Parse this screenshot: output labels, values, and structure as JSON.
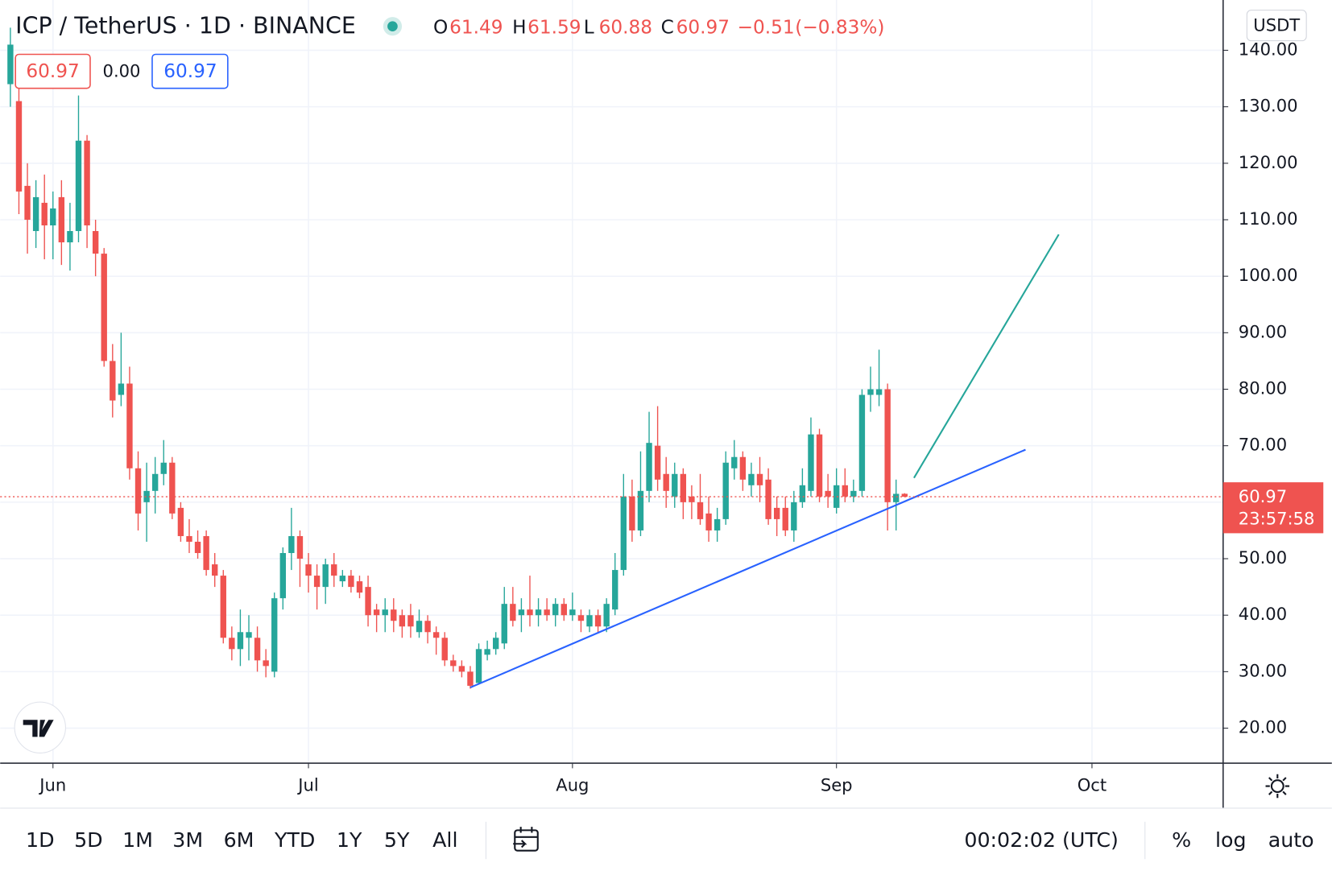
{
  "chart_data": {
    "type": "candlestick",
    "title": "ICP / TetherUS · 1D · BINANCE",
    "header_letters": [
      "O",
      "H",
      "L",
      "C"
    ],
    "change": {
      "value": -0.51,
      "label": "−0.51"
    },
    "change_pct": {
      "value": -0.83,
      "label": "(−0.83%)"
    },
    "legend_values": [
      60.97,
      {
        "value": 0,
        "label": "0.00"
      },
      60.97
    ],
    "currency": "USDT",
    "countdown": "23:57:58",
    "up_color": "#26a69a",
    "down_color": "#ef5350",
    "grid": true,
    "ohlc": [
      [
        134,
        144,
        130,
        141
      ],
      [
        131,
        135,
        111,
        115
      ],
      [
        116,
        120,
        104,
        110
      ],
      [
        108,
        117,
        105,
        114
      ],
      [
        113,
        118,
        103,
        109
      ],
      [
        109,
        115,
        103,
        112
      ],
      [
        114,
        117,
        102,
        106
      ],
      [
        106,
        113,
        101,
        108
      ],
      [
        108,
        132,
        106,
        124
      ],
      [
        124,
        125,
        105,
        109
      ],
      [
        108,
        110,
        100,
        104
      ],
      [
        104,
        105,
        84,
        85
      ],
      [
        85,
        88,
        75,
        78
      ],
      [
        79,
        90,
        77,
        81
      ],
      [
        81,
        84,
        64,
        66
      ],
      [
        66,
        69,
        55,
        58
      ],
      [
        60,
        67,
        53,
        62
      ],
      [
        62,
        68,
        58,
        65
      ],
      [
        65,
        71,
        63,
        67
      ],
      [
        67,
        68,
        57,
        58
      ],
      [
        59,
        60,
        53,
        54
      ],
      [
        54,
        57,
        51,
        53
      ],
      [
        53,
        55,
        50,
        51
      ],
      [
        54,
        55,
        47,
        48
      ],
      [
        49,
        51,
        45,
        47
      ],
      [
        47,
        48,
        35,
        36
      ],
      [
        36,
        38,
        32,
        34
      ],
      [
        34,
        41,
        31,
        37
      ],
      [
        36,
        40,
        32,
        37
      ],
      [
        36,
        38,
        30,
        32
      ],
      [
        32,
        34,
        29,
        31
      ],
      [
        30,
        44,
        29,
        43
      ],
      [
        43,
        52,
        41,
        51
      ],
      [
        51,
        59,
        48,
        54
      ],
      [
        54,
        55,
        45,
        50
      ],
      [
        49,
        51,
        44,
        47
      ],
      [
        47,
        49,
        41,
        45
      ],
      [
        45,
        50,
        42,
        49
      ],
      [
        49,
        51,
        45,
        47
      ],
      [
        46,
        48,
        45,
        47
      ],
      [
        47,
        48,
        44,
        45
      ],
      [
        46,
        47,
        43,
        44
      ],
      [
        45,
        47,
        38,
        40
      ],
      [
        41,
        42,
        37,
        40
      ],
      [
        40,
        43,
        37,
        41
      ],
      [
        41,
        43,
        37,
        39
      ],
      [
        40,
        41,
        36,
        38
      ],
      [
        40,
        42,
        36,
        38
      ],
      [
        37,
        41,
        36,
        39
      ],
      [
        39,
        40,
        35,
        37
      ],
      [
        37,
        38,
        33,
        36
      ],
      [
        36,
        37,
        31,
        32
      ],
      [
        32,
        33,
        30,
        31
      ],
      [
        31,
        32,
        29,
        30
      ],
      [
        30,
        31,
        27,
        27.5
      ],
      [
        28,
        35,
        28,
        34
      ],
      [
        33,
        35.5,
        32,
        34
      ],
      [
        34,
        37,
        33,
        36
      ],
      [
        35,
        45,
        34,
        42
      ],
      [
        42,
        45,
        38,
        39
      ],
      [
        40,
        43,
        37,
        41
      ],
      [
        41,
        47,
        38,
        40
      ],
      [
        40,
        43,
        38,
        41
      ],
      [
        41,
        43,
        39,
        40
      ],
      [
        40,
        43,
        38,
        42
      ],
      [
        42,
        43,
        39,
        40
      ],
      [
        40,
        44,
        39,
        41
      ],
      [
        40,
        41,
        37,
        39
      ],
      [
        38,
        41,
        37,
        40
      ],
      [
        40,
        41,
        37,
        38
      ],
      [
        38,
        43,
        37,
        42
      ],
      [
        41,
        51,
        40,
        48
      ],
      [
        48,
        65,
        47,
        61
      ],
      [
        61,
        64,
        53,
        55
      ],
      [
        55,
        69,
        54,
        62
      ],
      [
        62,
        76,
        60,
        70.5
      ],
      [
        70,
        77,
        62,
        64
      ],
      [
        65,
        68,
        59,
        62
      ],
      [
        61,
        67,
        59,
        65
      ],
      [
        65,
        66,
        57,
        60
      ],
      [
        61,
        63,
        57,
        60
      ],
      [
        60,
        65,
        56,
        57
      ],
      [
        58,
        61,
        53,
        55
      ],
      [
        55,
        59,
        53,
        57
      ],
      [
        57,
        69,
        56,
        67
      ],
      [
        66,
        71,
        64,
        68
      ],
      [
        68,
        69,
        62,
        64
      ],
      [
        63,
        67,
        61,
        65
      ],
      [
        65,
        68,
        60,
        63
      ],
      [
        64,
        66,
        56,
        57
      ],
      [
        59,
        61,
        54,
        57
      ],
      [
        59,
        61,
        54,
        55
      ],
      [
        55,
        62,
        53,
        60
      ],
      [
        60,
        66,
        59,
        63
      ],
      [
        62,
        75,
        61,
        72
      ],
      [
        72,
        73,
        60,
        61
      ],
      [
        62,
        65,
        59,
        61
      ],
      [
        59,
        66,
        58,
        63
      ],
      [
        63,
        66,
        60,
        61
      ],
      [
        61,
        64,
        60,
        62
      ],
      [
        62,
        80,
        61,
        79
      ],
      [
        79,
        84,
        76,
        80
      ],
      [
        79,
        87,
        77,
        80
      ],
      [
        80,
        81,
        55,
        60
      ],
      [
        60,
        64,
        55,
        61.48
      ],
      [
        61.49,
        61.59,
        60.88,
        60.97
      ]
    ],
    "drawings": [
      {
        "color": "#2962ff",
        "points": [
          [
            54,
            27.2
          ],
          [
            119.2,
            69.3
          ]
        ]
      },
      {
        "color": "#26a69a",
        "points": [
          [
            106.1,
            64.3
          ],
          [
            123.1,
            107.4
          ]
        ]
      }
    ],
    "xlim": [
      -1.2,
      142.4
    ],
    "xticks": [
      {
        "value": 5,
        "label": "Jun"
      },
      {
        "value": 35,
        "label": "Jul"
      },
      {
        "value": 66,
        "label": "Aug"
      },
      {
        "value": 97,
        "label": "Sep"
      },
      {
        "value": 127,
        "label": "Oct"
      }
    ],
    "ylim": [
      13.8,
      148.9
    ],
    "yticks": [
      {
        "value": 20,
        "label": "20.00"
      },
      {
        "value": 30,
        "label": "30.00"
      },
      {
        "value": 40,
        "label": "40.00"
      },
      {
        "value": 50,
        "label": "50.00"
      },
      {
        "value": 60,
        "label": "60.00"
      },
      {
        "value": 70,
        "label": "70.00"
      },
      {
        "value": 80,
        "label": "80.00"
      },
      {
        "value": 90,
        "label": "90.00"
      },
      {
        "value": 100,
        "label": "100.00"
      },
      {
        "value": 110,
        "label": "110.00"
      },
      {
        "value": 120,
        "label": "120.00"
      },
      {
        "value": 130,
        "label": "130.00"
      },
      {
        "value": 140,
        "label": "140.00"
      }
    ],
    "ranges": [
      "1D",
      "5D",
      "1M",
      "3M",
      "6M",
      "YTD",
      "1Y",
      "5Y",
      "All"
    ],
    "clock": "00:02:02 (UTC)",
    "toggles": [
      "%",
      "log",
      "auto"
    ]
  }
}
